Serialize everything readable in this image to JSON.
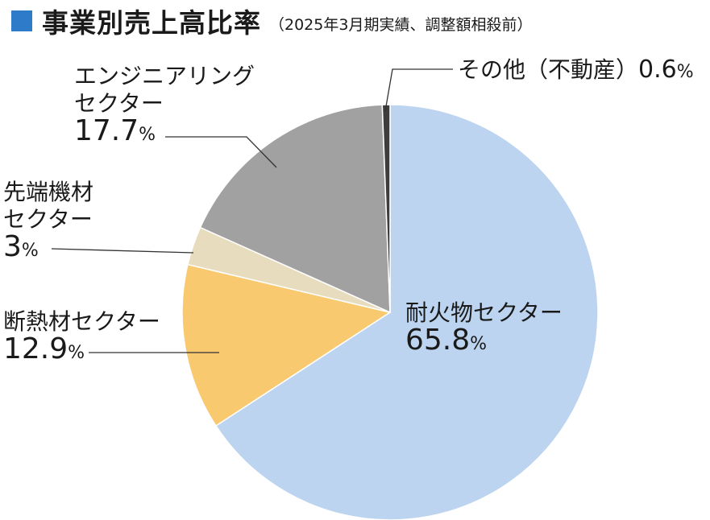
{
  "title": "事業別売上高比率",
  "subtitle": "（2025年3月期実績、調整額相殺前）",
  "colors": {
    "title_square": "#2e7bc9",
    "slice_border": "#ffffff",
    "leader_line": "#333333"
  },
  "chart_data": {
    "type": "pie",
    "title": "事業別売上高比率",
    "subtitle": "（2025年3月期実績、調整額相殺前）",
    "start_angle_deg": 0,
    "direction": "clockwise",
    "unit": "%",
    "slices": [
      {
        "label_lines": [
          "耐火物セクター"
        ],
        "value": 65.8,
        "value_text": "65.8",
        "color": "#bcd4ef"
      },
      {
        "label_lines": [
          "断熱材セクター"
        ],
        "value": 12.9,
        "value_text": "12.9",
        "color": "#f9c970"
      },
      {
        "label_lines": [
          "先端機材",
          "セクター"
        ],
        "value": 3,
        "value_text": "3",
        "color": "#e8dcbe"
      },
      {
        "label_lines": [
          "エンジニアリング",
          "セクター"
        ],
        "value": 17.7,
        "value_text": "17.7",
        "color": "#a1a1a1"
      },
      {
        "label_lines": [
          "その他（不動産）"
        ],
        "value": 0.6,
        "value_text": "0.6",
        "color": "#3d3d3d"
      }
    ]
  }
}
